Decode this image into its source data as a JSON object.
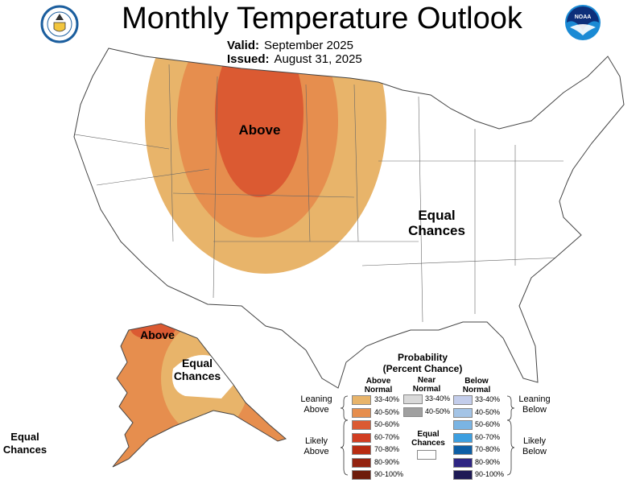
{
  "header": {
    "title": "Monthly Temperature Outlook",
    "valid_label": "Valid:",
    "valid_value": "September 2025",
    "issued_label": "Issued:",
    "issued_value": "August 31, 2025",
    "left_logo": "Department of Commerce seal",
    "right_logo_text": "NOAA"
  },
  "map": {
    "conus_above_label": "Above",
    "conus_equal_label": "Equal Chances",
    "alaska_above_label": "Above",
    "alaska_equal_label": "Equal Chances",
    "hawaii_equal_label": "Equal Chances"
  },
  "legend": {
    "title": "Probability",
    "subtitle": "(Percent Chance)",
    "above_header": "Above Normal",
    "near_header": "Near Normal",
    "below_header": "Below Normal",
    "leaning_above": "Leaning Above",
    "likely_above": "Likely Above",
    "leaning_below": "Leaning Below",
    "likely_below": "Likely Below",
    "equal_chances": "Equal Chances",
    "above": [
      {
        "label": "33-40%",
        "color": "#E8B46A"
      },
      {
        "label": "40-50%",
        "color": "#E68E4E"
      },
      {
        "label": "50-60%",
        "color": "#DB5A32"
      },
      {
        "label": "60-70%",
        "color": "#D13E22"
      },
      {
        "label": "70-80%",
        "color": "#B82C12"
      },
      {
        "label": "80-90%",
        "color": "#932310"
      },
      {
        "label": "90-100%",
        "color": "#6E1D0C"
      }
    ],
    "near": [
      {
        "label": "33-40%",
        "color": "#D9D9D9"
      },
      {
        "label": "40-50%",
        "color": "#A0A0A0"
      }
    ],
    "below": [
      {
        "label": "33-40%",
        "color": "#C3CDEB"
      },
      {
        "label": "40-50%",
        "color": "#A4C4E6"
      },
      {
        "label": "50-60%",
        "color": "#7AB4E3"
      },
      {
        "label": "60-70%",
        "color": "#3D9FE0"
      },
      {
        "label": "70-80%",
        "color": "#0D5EA5"
      },
      {
        "label": "80-90%",
        "color": "#2E2582"
      },
      {
        "label": "90-100%",
        "color": "#1E1A55"
      }
    ]
  }
}
